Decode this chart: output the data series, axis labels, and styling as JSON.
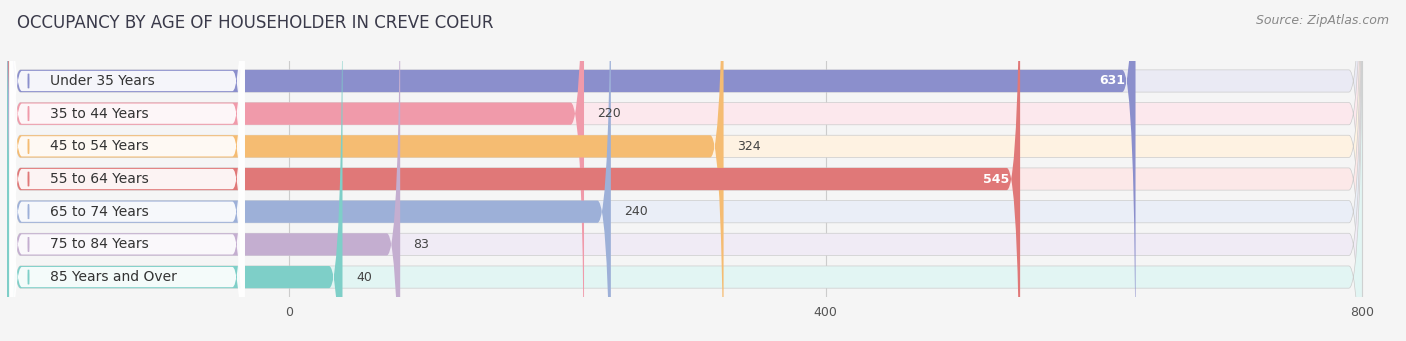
{
  "title": "OCCUPANCY BY AGE OF HOUSEHOLDER IN CREVE COEUR",
  "source": "Source: ZipAtlas.com",
  "categories": [
    "Under 35 Years",
    "35 to 44 Years",
    "45 to 54 Years",
    "55 to 64 Years",
    "65 to 74 Years",
    "75 to 84 Years",
    "85 Years and Over"
  ],
  "values": [
    631,
    220,
    324,
    545,
    240,
    83,
    40
  ],
  "bar_colors": [
    "#8b8fcc",
    "#f09aaa",
    "#f5bc72",
    "#e07878",
    "#9db0d8",
    "#c4aed0",
    "#7ecfc8"
  ],
  "bar_bg_colors": [
    "#eaeaf4",
    "#fce8ed",
    "#fef2e2",
    "#fce8e8",
    "#eaeef7",
    "#f0ebf5",
    "#e2f5f3"
  ],
  "label_bg_color": "#ffffff",
  "data_min": 0,
  "data_max": 800,
  "xticks": [
    0,
    400,
    800
  ],
  "title_fontsize": 12,
  "source_fontsize": 9,
  "label_fontsize": 10,
  "value_fontsize": 9,
  "background_color": "#f5f5f5"
}
